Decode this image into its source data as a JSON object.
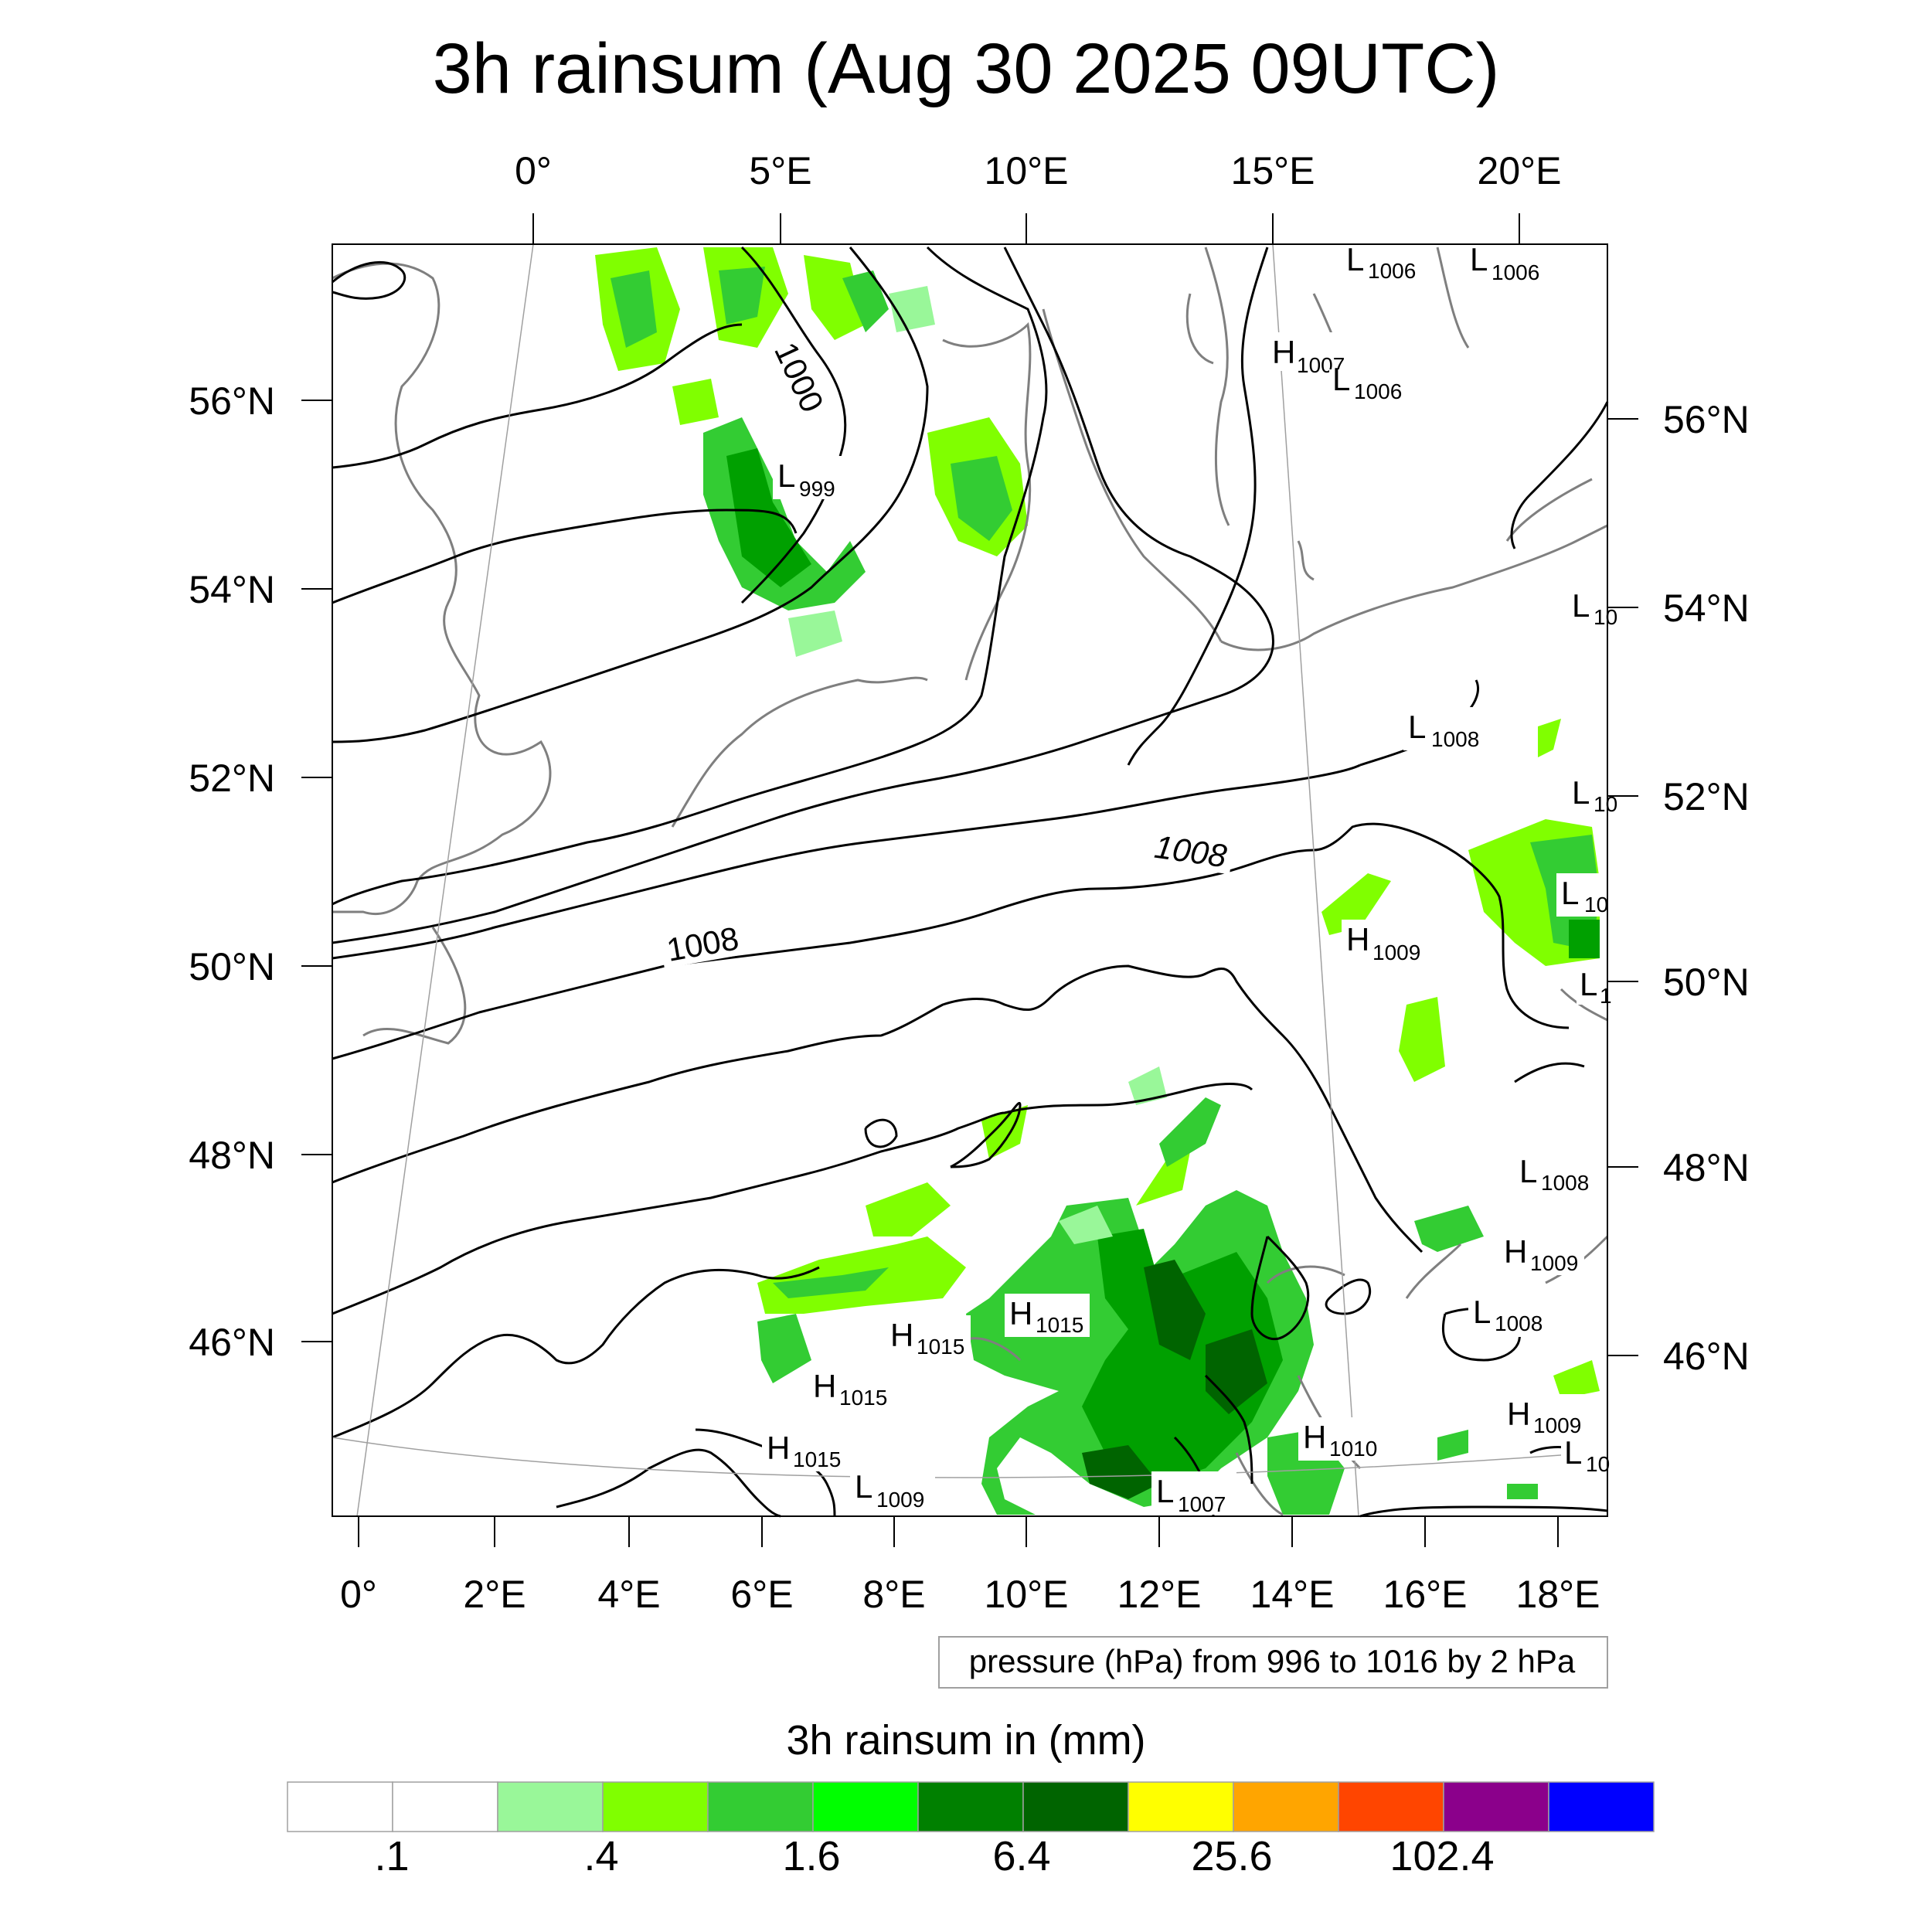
{
  "title": "3h rainsum (Aug 30 2025 09UTC)",
  "top_axis_labels": [
    "0°",
    "5°E",
    "10°E",
    "15°E",
    "20°E"
  ],
  "bottom_axis_labels": [
    "0°",
    "2°E",
    "4°E",
    "6°E",
    "8°E",
    "10°E",
    "12°E",
    "14°E",
    "16°E",
    "18°E"
  ],
  "left_axis_labels": [
    "56°N",
    "54°N",
    "52°N",
    "50°N",
    "48°N",
    "46°N"
  ],
  "right_axis_labels": [
    "56°N",
    "54°N",
    "52°N",
    "50°N",
    "48°N",
    "46°N"
  ],
  "contour_labels": [
    "1000",
    "1008",
    "1008"
  ],
  "pressure_centers": [
    {
      "type": "L",
      "value": "1006"
    },
    {
      "type": "L",
      "value": "1006"
    },
    {
      "type": "H",
      "value": "1007"
    },
    {
      "type": "L",
      "value": "1006"
    },
    {
      "type": "L",
      "value": "999"
    },
    {
      "type": "L",
      "value": "10"
    },
    {
      "type": "L",
      "value": "1008"
    },
    {
      "type": "L",
      "value": "10"
    },
    {
      "type": "L",
      "value": "10"
    },
    {
      "type": "H",
      "value": "1009"
    },
    {
      "type": "L",
      "value": "1"
    },
    {
      "type": "L",
      "value": "1008"
    },
    {
      "type": "H",
      "value": "1009"
    },
    {
      "type": "L",
      "value": "1008"
    },
    {
      "type": "H",
      "value": "1015"
    },
    {
      "type": "H",
      "value": "1015"
    },
    {
      "type": "H",
      "value": "1015"
    },
    {
      "type": "H",
      "value": "1015"
    },
    {
      "type": "L",
      "value": "1009"
    },
    {
      "type": "L",
      "value": "1007"
    },
    {
      "type": "H",
      "value": "1010"
    },
    {
      "type": "H",
      "value": "1009"
    },
    {
      "type": "L",
      "value": "10"
    }
  ],
  "contour_info": "pressure (hPa) from 996 to 1016 by 2 hPa",
  "colorbar": {
    "title": "3h rainsum in (mm)",
    "colors": [
      "#ffffff",
      "#ffffff",
      "#99f799",
      "#80ff00",
      "#33cc33",
      "#00ff00",
      "#008000",
      "#006400",
      "#ffff00",
      "#ffa500",
      "#ff4500",
      "#8b008b",
      "#0000ff"
    ],
    "labels": [
      ".1",
      ".4",
      "1.6",
      "6.4",
      "25.6",
      "102.4"
    ]
  }
}
